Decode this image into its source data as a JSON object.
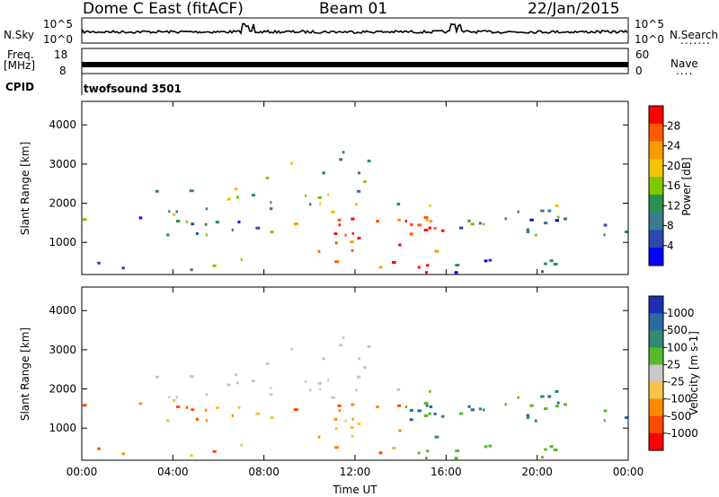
{
  "header": {
    "station": "Dome C East (fitACF)",
    "beam": "Beam 01",
    "date": "22/Jan/2015"
  },
  "sky_panel": {
    "left_label": "N.Sky",
    "right_label": "N.Search",
    "right_dots": ".......",
    "ticks_left": [
      "10^5",
      "10^0"
    ],
    "ticks_right": [
      "10^5",
      "10^0"
    ]
  },
  "freq_panel": {
    "left_label_line1": "Freq.",
    "left_label_line2": "[MHz]",
    "left_ticks": [
      "18",
      "8"
    ],
    "right_label": "Nave",
    "right_dots": "....",
    "right_ticks": [
      "60",
      "0"
    ]
  },
  "cpid": {
    "label": "CPID",
    "program": "twofsound 3501"
  },
  "chart_data": [
    {
      "type": "heatmap",
      "panel": "power",
      "ylabel": "Slant Range [km]",
      "y_ticks": [
        1000,
        2000,
        3000,
        4000
      ],
      "ylim": [
        180,
        4600
      ],
      "x_ticks": [
        "00:00",
        "04:00",
        "08:00",
        "12:00",
        "16:00",
        "20:00",
        "00:00"
      ],
      "xlim_hours": [
        0,
        24
      ],
      "colorbar_label": "Power [dB]",
      "colorbar_ticks": [
        "28",
        "24",
        "20",
        "16",
        "12",
        "8",
        "4"
      ],
      "colorbar_colors": [
        "#ff0000",
        "#ff5a00",
        "#ff9a00",
        "#f2c500",
        "#7ec800",
        "#2a9050",
        "#3a7a90",
        "#2a4ab0",
        "#0000ff"
      ]
    },
    {
      "type": "heatmap",
      "panel": "velocity",
      "ylabel": "Slant Range [km]",
      "y_ticks": [
        1000,
        2000,
        3000,
        4000
      ],
      "ylim": [
        180,
        4600
      ],
      "x_ticks": [
        "00:00",
        "04:00",
        "08:00",
        "12:00",
        "16:00",
        "20:00",
        "00:00"
      ],
      "xlabel": "Time UT",
      "colorbar_label": "Velocity [m s-1]",
      "colorbar_ticks": [
        "1000",
        "500",
        "100",
        "25",
        "-25",
        "-100",
        "-500",
        "-1000"
      ],
      "colorbar_colors": [
        "#1a2fb0",
        "#2a6aa0",
        "#2f8a70",
        "#5ab82a",
        "#c8c8c8",
        "#f5c24a",
        "#ff8a00",
        "#ff4a00",
        "#ff0000"
      ]
    }
  ]
}
